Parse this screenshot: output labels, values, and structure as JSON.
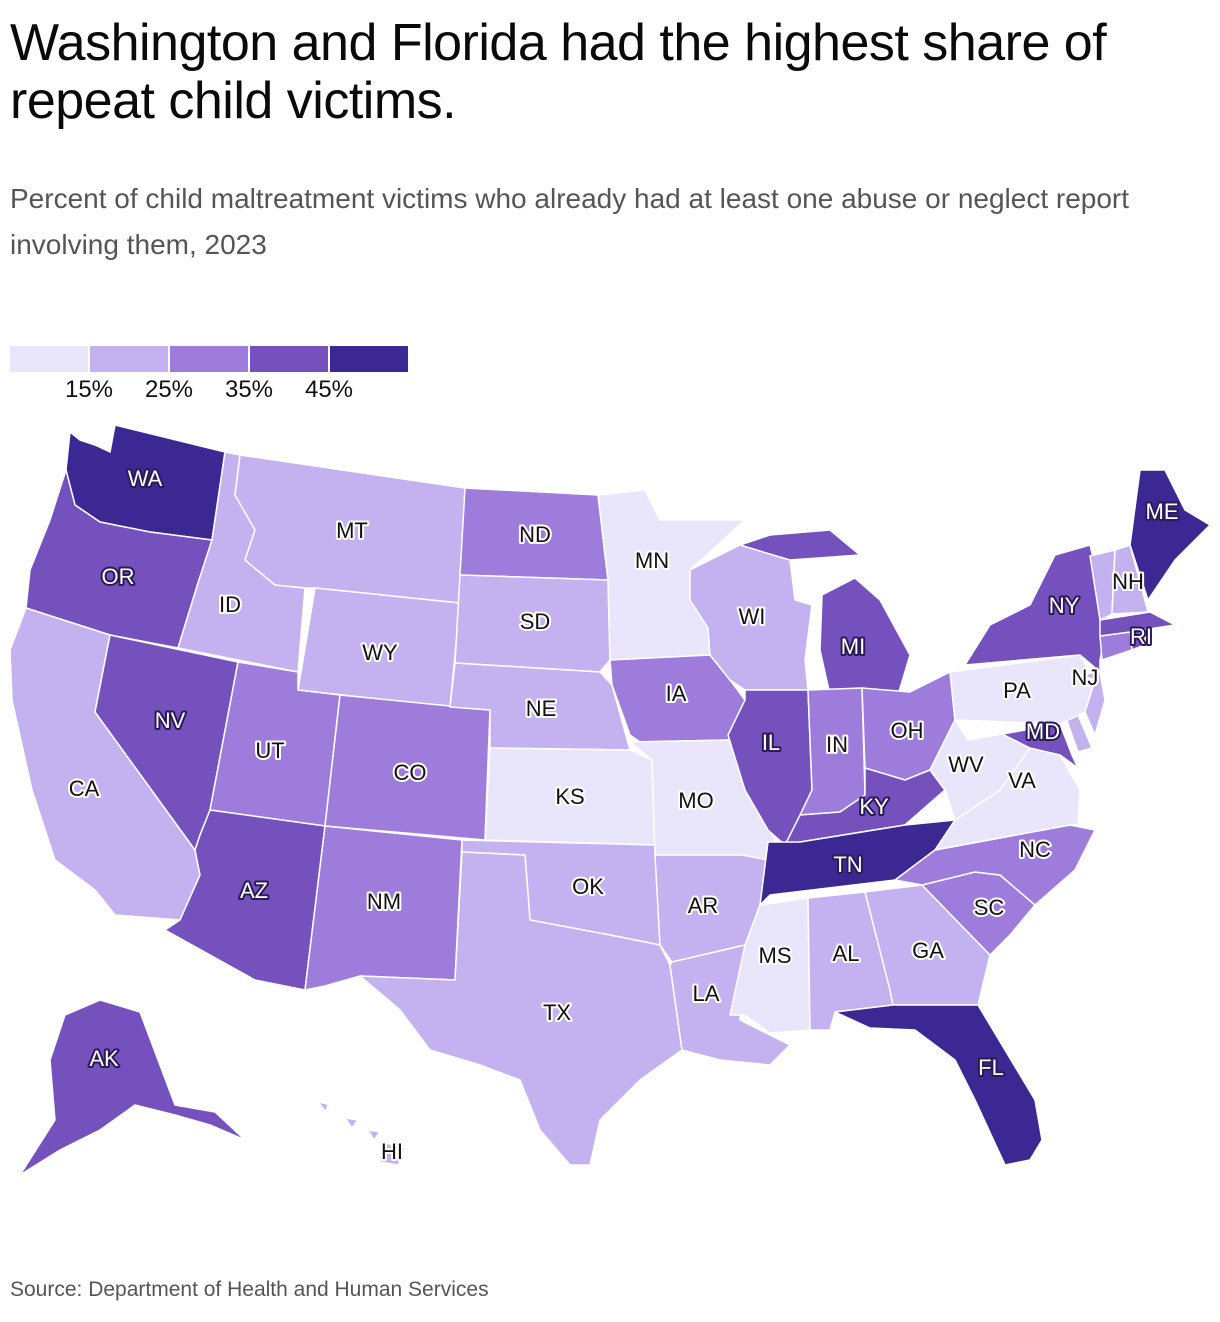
{
  "title": "Washington and Florida had the highest share of repeat child victims.",
  "subtitle": "Percent of child maltreatment victims who already had at least one abuse or neglect report involving them, 2023",
  "source": "Source: Department of Health and Human Services",
  "legend": {
    "colors": [
      "#e9e5fb",
      "#c3b2ef",
      "#9e7cdb",
      "#7451bc",
      "#3c2892"
    ],
    "labels": [
      "15%",
      "25%",
      "35%",
      "45%"
    ]
  },
  "states": [
    {
      "abbr": "WA",
      "bin": 4
    },
    {
      "abbr": "OR",
      "bin": 3
    },
    {
      "abbr": "CA",
      "bin": 1
    },
    {
      "abbr": "ID",
      "bin": 1
    },
    {
      "abbr": "NV",
      "bin": 3
    },
    {
      "abbr": "MT",
      "bin": 1
    },
    {
      "abbr": "WY",
      "bin": 1
    },
    {
      "abbr": "UT",
      "bin": 2
    },
    {
      "abbr": "AZ",
      "bin": 3
    },
    {
      "abbr": "CO",
      "bin": 2
    },
    {
      "abbr": "NM",
      "bin": 2
    },
    {
      "abbr": "ND",
      "bin": 2
    },
    {
      "abbr": "SD",
      "bin": 1
    },
    {
      "abbr": "NE",
      "bin": 1
    },
    {
      "abbr": "KS",
      "bin": 0
    },
    {
      "abbr": "OK",
      "bin": 1
    },
    {
      "abbr": "TX",
      "bin": 1
    },
    {
      "abbr": "MN",
      "bin": 0
    },
    {
      "abbr": "IA",
      "bin": 2
    },
    {
      "abbr": "MO",
      "bin": 0
    },
    {
      "abbr": "AR",
      "bin": 1
    },
    {
      "abbr": "LA",
      "bin": 1
    },
    {
      "abbr": "WI",
      "bin": 1
    },
    {
      "abbr": "IL",
      "bin": 3
    },
    {
      "abbr": "MI",
      "bin": 3
    },
    {
      "abbr": "IN",
      "bin": 2
    },
    {
      "abbr": "OH",
      "bin": 2
    },
    {
      "abbr": "KY",
      "bin": 3
    },
    {
      "abbr": "TN",
      "bin": 4
    },
    {
      "abbr": "MS",
      "bin": 0
    },
    {
      "abbr": "AL",
      "bin": 1
    },
    {
      "abbr": "GA",
      "bin": 1
    },
    {
      "abbr": "FL",
      "bin": 4
    },
    {
      "abbr": "SC",
      "bin": 2
    },
    {
      "abbr": "NC",
      "bin": 2
    },
    {
      "abbr": "VA",
      "bin": 0
    },
    {
      "abbr": "WV",
      "bin": 0
    },
    {
      "abbr": "MD",
      "bin": 3
    },
    {
      "abbr": "DE",
      "bin": 1
    },
    {
      "abbr": "PA",
      "bin": 0
    },
    {
      "abbr": "NJ",
      "bin": 1
    },
    {
      "abbr": "NY",
      "bin": 3
    },
    {
      "abbr": "CT",
      "bin": 2
    },
    {
      "abbr": "RI",
      "bin": 3
    },
    {
      "abbr": "MA",
      "bin": 3
    },
    {
      "abbr": "VT",
      "bin": 1
    },
    {
      "abbr": "NH",
      "bin": 1
    },
    {
      "abbr": "ME",
      "bin": 4
    },
    {
      "abbr": "AK",
      "bin": 3
    },
    {
      "abbr": "HI",
      "bin": 1
    }
  ]
}
